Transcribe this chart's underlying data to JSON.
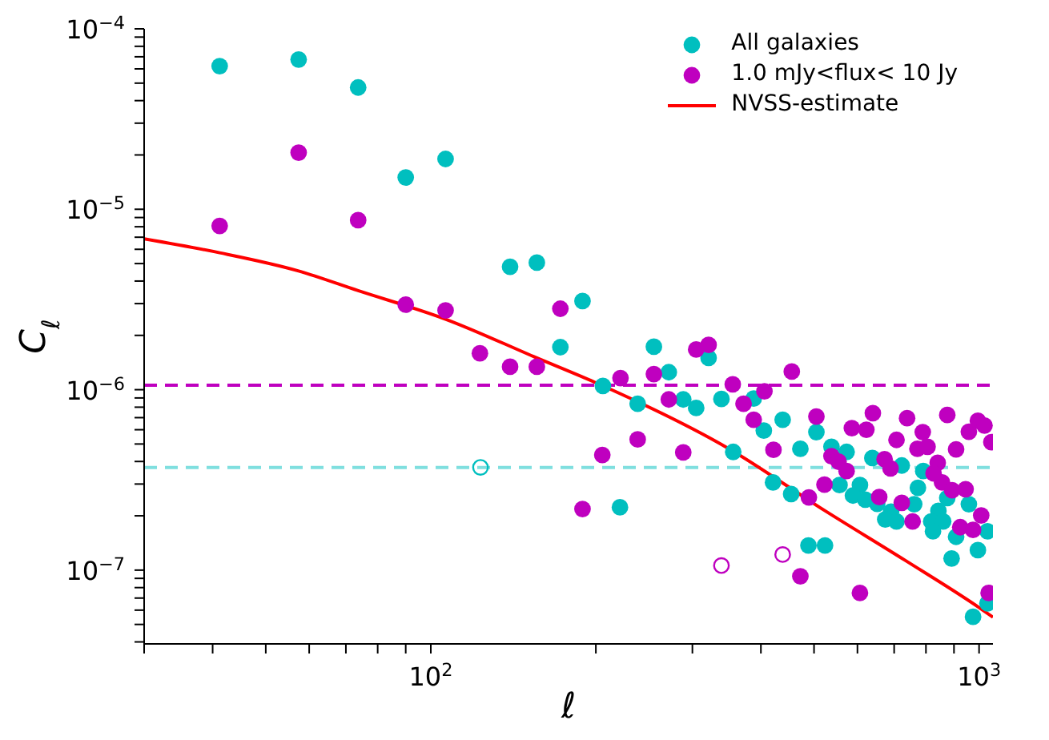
{
  "chart_data": {
    "type": "scatter",
    "xlabel": "ℓ",
    "ylabel": "C$_{ℓ}$",
    "log": "xy",
    "marker": "circle",
    "legend": "top right",
    "xlim": [
      30,
      1060
    ],
    "ylim": [
      3.9e-08,
      0.0001
    ],
    "xticks": [
      {
        "value": 30,
        "label": null
      },
      {
        "value": 40,
        "label": null
      },
      {
        "value": 50,
        "label": null
      },
      {
        "value": 60,
        "label": null
      },
      {
        "value": 70,
        "label": null
      },
      {
        "value": 80,
        "label": null
      },
      {
        "value": 90,
        "label": null
      },
      {
        "value": 100,
        "label": "10$^{2}$"
      },
      {
        "value": 200,
        "label": null
      },
      {
        "value": 300,
        "label": null
      },
      {
        "value": 400,
        "label": null
      },
      {
        "value": 500,
        "label": null
      },
      {
        "value": 600,
        "label": null
      },
      {
        "value": 700,
        "label": null
      },
      {
        "value": 800,
        "label": null
      },
      {
        "value": 900,
        "label": null
      },
      {
        "value": 1000,
        "label": "10$^{3}$"
      }
    ],
    "yticks": [
      {
        "value": 4e-08,
        "label": null
      },
      {
        "value": 5e-08,
        "label": null
      },
      {
        "value": 6e-08,
        "label": null
      },
      {
        "value": 7e-08,
        "label": null
      },
      {
        "value": 8e-08,
        "label": null
      },
      {
        "value": 9e-08,
        "label": null
      },
      {
        "value": 1e-07,
        "label": "10$^{−7}$"
      },
      {
        "value": 2e-07,
        "label": null
      },
      {
        "value": 3e-07,
        "label": null
      },
      {
        "value": 4e-07,
        "label": null
      },
      {
        "value": 5e-07,
        "label": null
      },
      {
        "value": 6e-07,
        "label": null
      },
      {
        "value": 7e-07,
        "label": null
      },
      {
        "value": 8e-07,
        "label": null
      },
      {
        "value": 9e-07,
        "label": null
      },
      {
        "value": 1e-06,
        "label": "10$^{−6}$"
      },
      {
        "value": 2e-06,
        "label": null
      },
      {
        "value": 3e-06,
        "label": null
      },
      {
        "value": 4e-06,
        "label": null
      },
      {
        "value": 5e-06,
        "label": null
      },
      {
        "value": 6e-06,
        "label": null
      },
      {
        "value": 7e-06,
        "label": null
      },
      {
        "value": 8e-06,
        "label": null
      },
      {
        "value": 9e-06,
        "label": null
      },
      {
        "value": 1e-05,
        "label": "10$^{−5}$"
      },
      {
        "value": 2e-05,
        "label": null
      },
      {
        "value": 3e-05,
        "label": null
      },
      {
        "value": 4e-05,
        "label": null
      },
      {
        "value": 5e-05,
        "label": null
      },
      {
        "value": 6e-05,
        "label": null
      },
      {
        "value": 7e-05,
        "label": null
      },
      {
        "value": 8e-05,
        "label": null
      },
      {
        "value": 9e-05,
        "label": null
      },
      {
        "value": 0.0001,
        "label": "10$^{−4}$"
      }
    ],
    "ref_lines": [
      {
        "axis": "y",
        "value": 1.06e-06,
        "label": null,
        "color": "#bf00bf",
        "line_style": "dashed"
      },
      {
        "axis": "y",
        "value": 3.7e-07,
        "label": null,
        "color": "#7fdfdf",
        "line_style": "dashed"
      }
    ],
    "series": [
      {
        "name": "All galaxies",
        "color": "#00bfbf",
        "x": [
          41.2,
          57.4,
          73.7,
          90,
          106.4,
          139.5,
          156.1,
          189.1,
          172.3,
          255.2,
          321.1,
          271.7,
          206,
          238.4,
          288.7,
          304.8,
          338.9,
          388.1,
          404.9,
          438.3,
          505,
          472.1,
          356.1,
          538,
          573.3,
          638.8,
          722.8,
          420.9,
          454.2,
          556.5,
          606.3,
          588.8,
          620,
          651.9,
          691,
          674.3,
          707,
          761.5,
          773.5,
          791,
          843,
          818,
          860,
          824,
          875,
          958,
          908,
          1036,
          891,
          995,
          221.3,
          488.4,
          523.6,
          975,
          1036
        ],
        "values": [
          6.21e-05,
          6.76e-05,
          4.73e-05,
          1.5e-05,
          1.9e-05,
          4.8e-06,
          5.06e-06,
          3.1e-06,
          1.72e-06,
          1.73e-06,
          1.5e-06,
          1.25e-06,
          1.05e-06,
          8.36e-07,
          8.83e-07,
          7.92e-07,
          8.88e-07,
          8.93e-07,
          5.93e-07,
          6.82e-07,
          5.82e-07,
          4.7e-07,
          4.52e-07,
          4.83e-07,
          4.52e-07,
          4.18e-07,
          3.8e-07,
          3.06e-07,
          2.64e-07,
          2.96e-07,
          2.96e-07,
          2.59e-07,
          2.46e-07,
          2.33e-07,
          2.11e-07,
          1.91e-07,
          1.86e-07,
          2.32e-07,
          2.86e-07,
          3.54e-07,
          2.13e-07,
          1.86e-07,
          1.86e-07,
          1.64e-07,
          2.51e-07,
          2.32e-07,
          1.53e-07,
          1.64e-07,
          1.16e-07,
          1.29e-07,
          2.23e-07,
          1.37e-07,
          1.37e-07,
          5.51e-08,
          6.55e-08
        ]
      },
      {
        "name": "1.0 mJy<flux< 10 Jy",
        "color": "#bf00bf",
        "x": [
          41.2,
          57.4,
          73.7,
          90,
          106.4,
          122.9,
          139.5,
          156.1,
          172.3,
          221.8,
          255.2,
          304.8,
          321.1,
          455.4,
          355.4,
          406,
          271.7,
          371.9,
          388.1,
          505,
          586.1,
          622.9,
          640.1,
          739.1,
          789.4,
          875,
          958,
          995,
          1023,
          707,
          771.9,
          805.4,
          908,
          1053,
          421.7,
          538,
          554.2,
          573.3,
          672.4,
          689.5,
          840.5,
          826,
          856,
          893,
          945,
          522.4,
          657.5,
          489.3,
          722.8,
          205.5,
          238.4,
          288.7,
          189.1,
          756.4,
          1009,
          924,
          975,
          472.1,
          606.3,
          1041
        ],
        "values": [
          8.09e-06,
          2.06e-05,
          8.7e-06,
          2.96e-06,
          2.75e-06,
          1.59e-06,
          1.34e-06,
          1.34e-06,
          2.81e-06,
          1.16e-06,
          1.22e-06,
          1.67e-06,
          1.77e-06,
          1.26e-06,
          1.07e-06,
          9.8e-07,
          8.83e-07,
          8.36e-07,
          6.82e-07,
          7.1e-07,
          6.12e-07,
          6e-07,
          7.42e-07,
          6.95e-07,
          5.82e-07,
          7.24e-07,
          5.85e-07,
          6.72e-07,
          6.33e-07,
          5.27e-07,
          4.7e-07,
          4.83e-07,
          4.67e-07,
          5.12e-07,
          4.64e-07,
          4.28e-07,
          3.99e-07,
          3.54e-07,
          4.12e-07,
          3.66e-07,
          3.93e-07,
          3.44e-07,
          3.06e-07,
          2.77e-07,
          2.81e-07,
          2.98e-07,
          2.54e-07,
          2.53e-07,
          2.36e-07,
          4.35e-07,
          5.3e-07,
          4.49e-07,
          2.18e-07,
          1.86e-07,
          2.01e-07,
          1.73e-07,
          1.67e-07,
          9.24e-08,
          7.47e-08,
          7.47e-08
        ]
      },
      {
        "color": "#00bfbf",
        "x": [
          123.2
        ],
        "values": [
          3.71e-07
        ]
      },
      {
        "color": "#bf00bf",
        "x": [
          338.9,
          438.3
        ],
        "values": [
          1.06e-07,
          1.22e-07
        ]
      },
      {
        "type": "line",
        "marker": "none",
        "name": "NVSS-estimate",
        "color": "#ff0000",
        "x": [
          30,
          41.2,
          57.4,
          73.7,
          106.4,
          156.1,
          199,
          350,
          524,
          734,
          1000,
          1060
        ],
        "values": [
          6.86e-06,
          5.74e-06,
          4.55e-06,
          3.54e-06,
          2.46e-06,
          1.5e-06,
          1.1e-06,
          4.7e-07,
          2.13e-07,
          1.13e-07,
          6.2e-08,
          5.48e-08
        ]
      }
    ]
  }
}
